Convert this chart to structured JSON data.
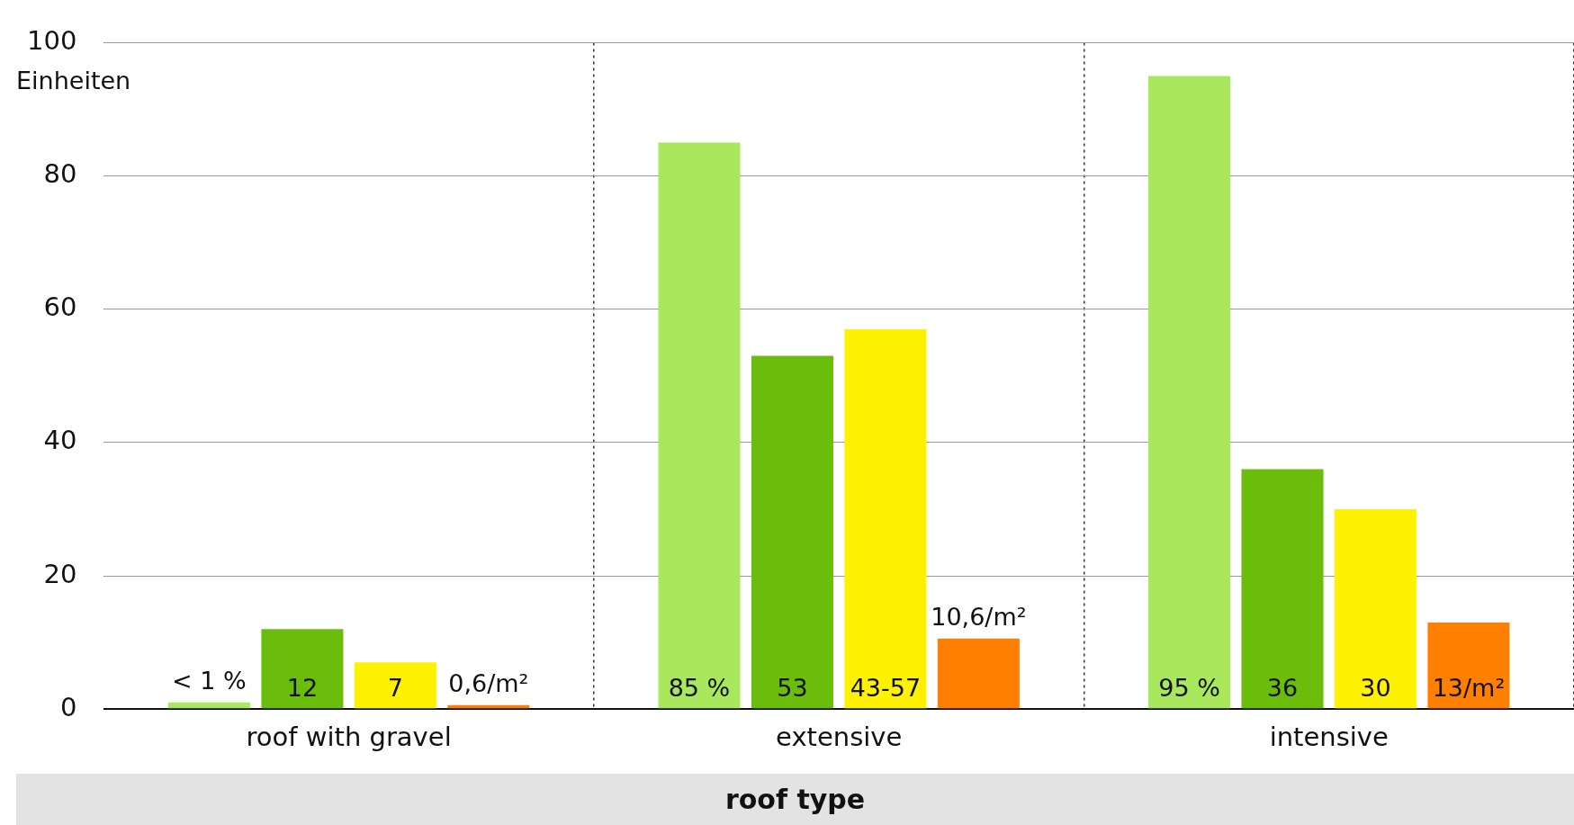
{
  "chart_data": {
    "type": "bar",
    "xlabel": "roof type",
    "ylabel": "Einheiten",
    "categories": [
      "roof with gravel",
      "extensive",
      "intensive"
    ],
    "series": [
      {
        "color": "#a9e85c",
        "values": [
          1,
          85,
          95
        ],
        "value_labels": [
          "< 1 %",
          "85 %",
          "95 %"
        ]
      },
      {
        "color": "#6bbd0c",
        "values": [
          12,
          53,
          36
        ],
        "value_labels": [
          "12",
          "53",
          "36"
        ]
      },
      {
        "color": "#fff200",
        "values": [
          7,
          57,
          30
        ],
        "value_labels": [
          "7",
          "43-57",
          "30"
        ]
      },
      {
        "color": "#ff7f00",
        "values": [
          0.6,
          10.6,
          13
        ],
        "value_labels": [
          "0,6/m²",
          "10,6/m²",
          "13/m²"
        ]
      }
    ],
    "ylim": [
      0,
      100
    ],
    "yticks": [
      0,
      20,
      40,
      60,
      80,
      100
    ],
    "grid": true,
    "legend": false
  }
}
